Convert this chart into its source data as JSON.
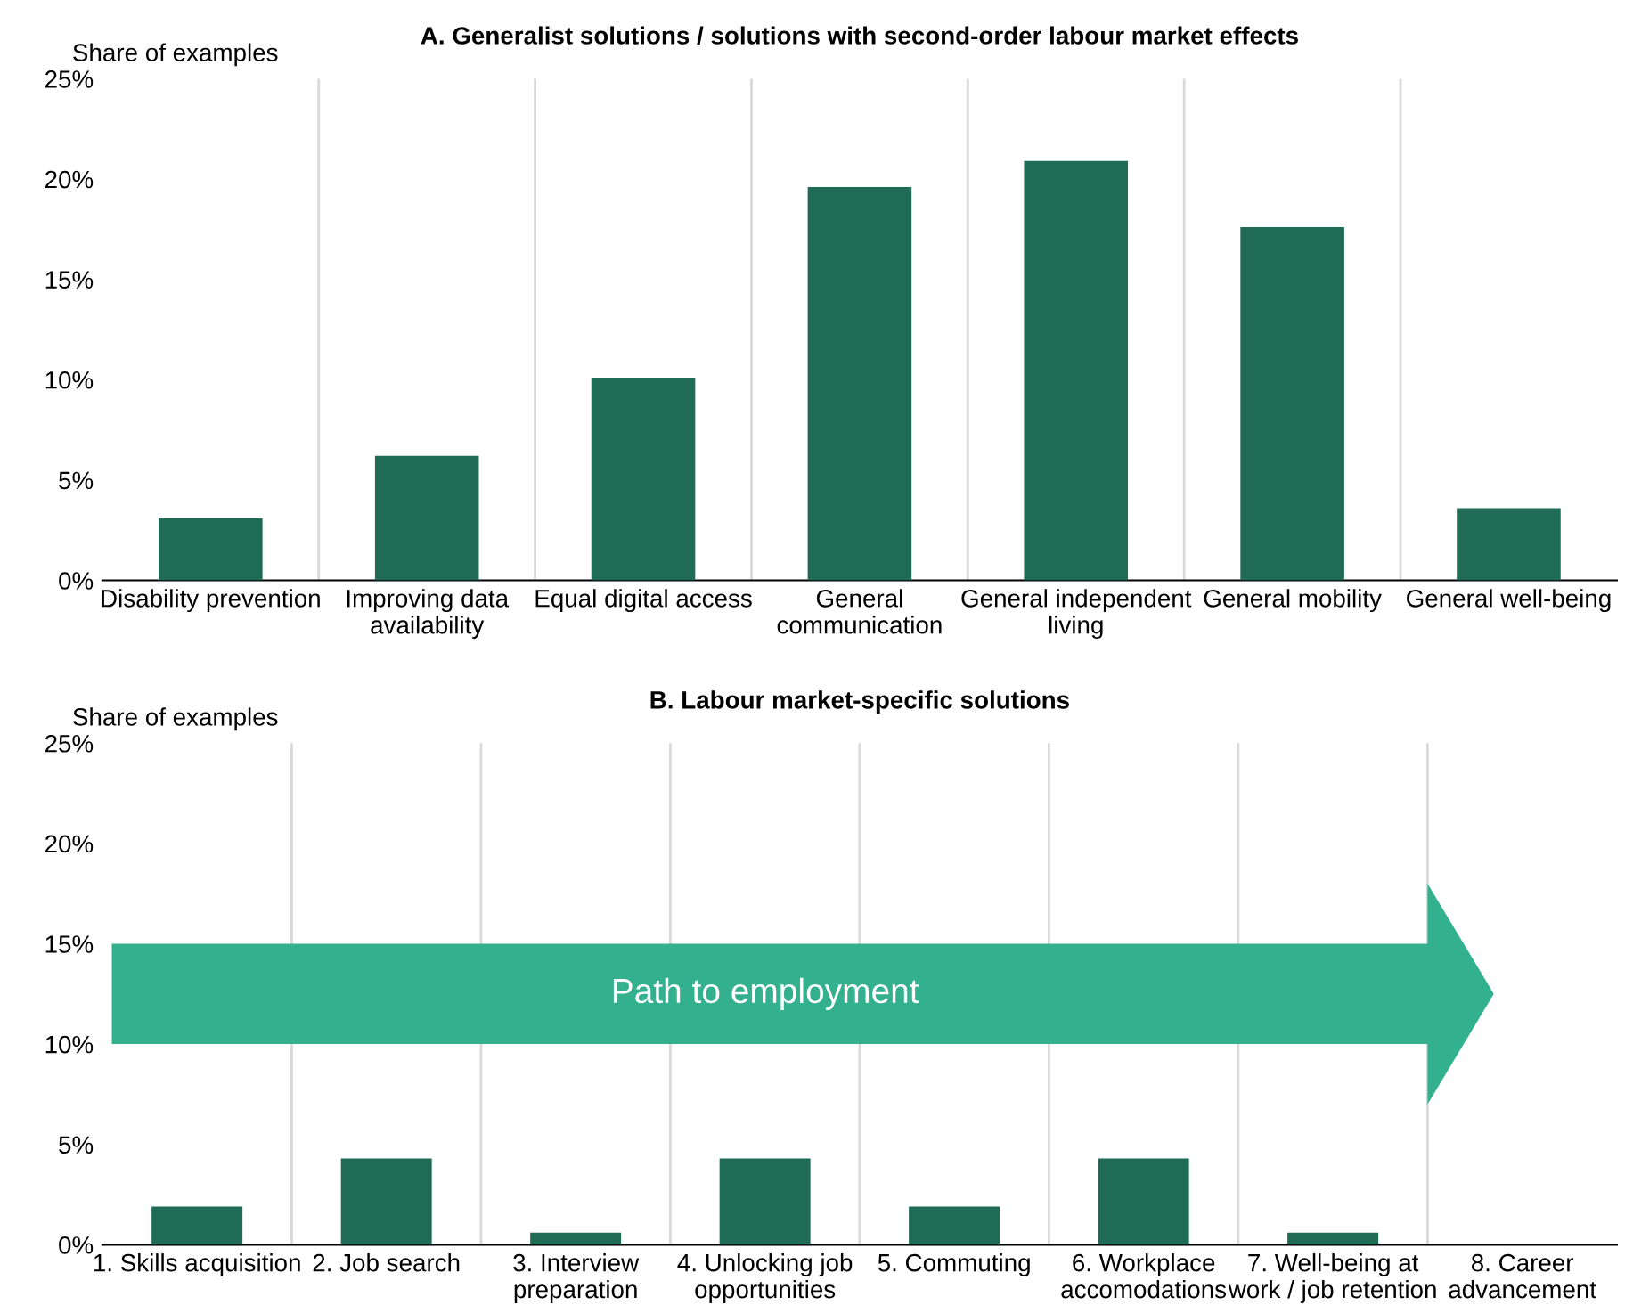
{
  "chart_data": [
    {
      "type": "bar",
      "title": "A. Generalist solutions / solutions with second-order labour market effects",
      "ylabel": "Share of examples",
      "categories": [
        "Disability prevention",
        "Improving data\navailability",
        "Equal digital access",
        "General\ncommunication",
        "General independent\nliving",
        "General mobility",
        "General well-being"
      ],
      "values": [
        3.1,
        6.2,
        10.1,
        19.6,
        20.9,
        17.6,
        3.6
      ],
      "color": "#1f6b56",
      "ylim": [
        0,
        25
      ],
      "yticks": [
        {
          "value": 0,
          "label": "0%"
        },
        {
          "value": 5,
          "label": "5%"
        },
        {
          "value": 10,
          "label": "10%"
        },
        {
          "value": 15,
          "label": "15%"
        },
        {
          "value": 20,
          "label": "20%"
        },
        {
          "value": 25,
          "label": "25%"
        }
      ],
      "grid": "x"
    },
    {
      "type": "bar",
      "title": "B. Labour market-specific solutions",
      "ylabel": "Share of examples",
      "categories": [
        "1. Skills acquisition",
        "2. Job search",
        "3. Interview\npreparation",
        "4. Unlocking job\nopportunities",
        "5. Commuting",
        "6. Workplace\naccomodations",
        "7. Well-being at\nwork / job retention",
        "8. Career\nadvancement"
      ],
      "values": [
        1.9,
        4.3,
        0.6,
        4.3,
        1.9,
        4.3,
        0.6,
        0
      ],
      "color": "#1f6b56",
      "ylim": [
        0,
        25
      ],
      "yticks": [
        {
          "value": 0,
          "label": "0%"
        },
        {
          "value": 5,
          "label": "5%"
        },
        {
          "value": 10,
          "label": "10%"
        },
        {
          "value": 15,
          "label": "15%"
        },
        {
          "value": 20,
          "label": "20%"
        },
        {
          "value": 25,
          "label": "25%"
        }
      ],
      "grid": "x",
      "annotations": [
        "Path to employment"
      ]
    }
  ]
}
